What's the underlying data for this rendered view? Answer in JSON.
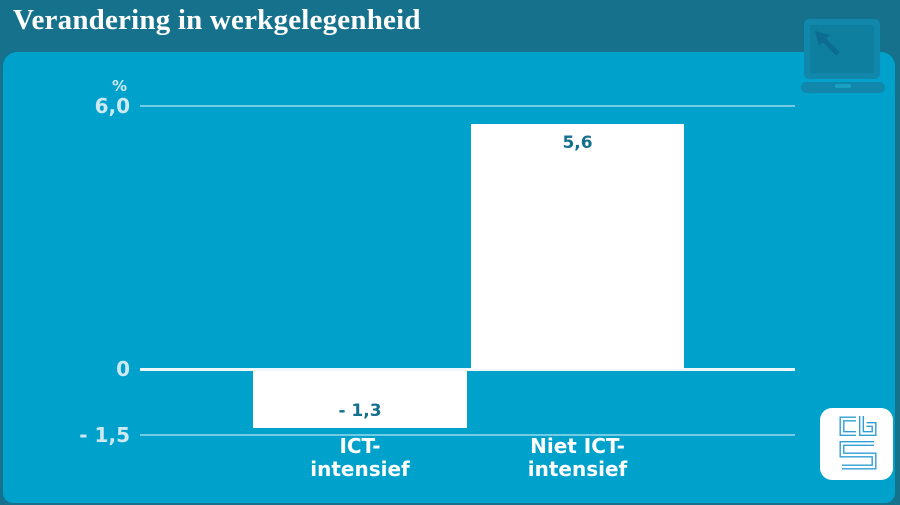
{
  "header": {
    "title": "Verandering in werkgelegenheid"
  },
  "icons": {
    "laptop": "laptop-with-arrow-icon",
    "logo": "cbs-logo"
  },
  "brand": {
    "logo_letters": "cbs"
  },
  "colors": {
    "header_bg": "#15718c",
    "card_bg": "#00a2cc",
    "bar_fill": "#ffffff",
    "bar_value_text": "#156f8e",
    "axis_label_text": "#cfe9f2",
    "zero_line": "#eef8fc",
    "grid_line": "rgba(255,255,255,0.45)",
    "category_text": "#ffffff",
    "logo_blue": "#2f9fd4",
    "icon_blue": "#1187ab"
  },
  "chart_data": {
    "type": "bar",
    "title": "Verandering in werkgelegenheid",
    "ylabel": "%",
    "xlabel": "",
    "categories": [
      "ICT-intensief",
      "Niet ICT-intensief"
    ],
    "category_lines": [
      [
        "ICT-",
        "intensief"
      ],
      [
        "Niet ICT-",
        "intensief"
      ]
    ],
    "values": [
      -1.3,
      5.6
    ],
    "value_labels": [
      "- 1,3",
      "5,6"
    ],
    "yticks": [
      6.0,
      0,
      -1.5
    ],
    "ytick_labels": [
      "6,0",
      "0",
      "- 1,5"
    ],
    "ylim": [
      -1.5,
      6.0
    ],
    "grid": true,
    "legend_position": "none",
    "bar_color": "#ffffff"
  }
}
